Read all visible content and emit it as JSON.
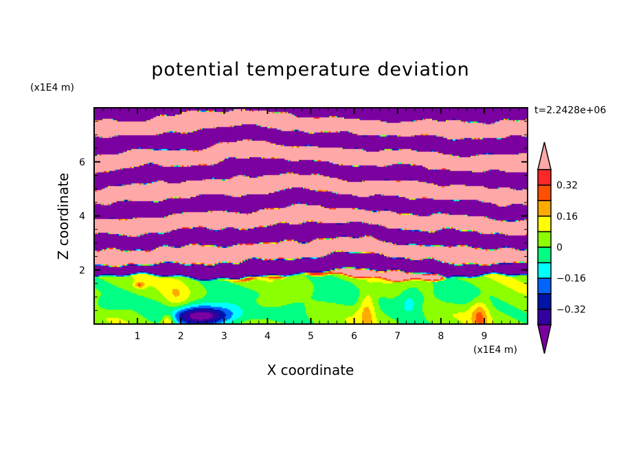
{
  "chart_data": {
    "type": "heatmap",
    "subtype": "filled-contour",
    "title": "potential temperature deviation",
    "xlabel": "X coordinate",
    "ylabel": "Z coordinate",
    "x_unit": "(x1E4 m)",
    "y_unit": "(x1E4 m)",
    "time_label": "t=2.2428e+06",
    "xlim": [
      0,
      10
    ],
    "ylim": [
      0,
      8
    ],
    "x_ticks": [
      1,
      2,
      3,
      4,
      5,
      6,
      7,
      8,
      9
    ],
    "x_tick_labels": [
      "1",
      "2",
      "3",
      "4",
      "5",
      "6",
      "7",
      "8",
      "9"
    ],
    "y_ticks": [
      2,
      4,
      6
    ],
    "y_tick_labels": [
      "2",
      "4",
      "6"
    ],
    "x_minor_step": 0.2,
    "y_minor_step": 0.5,
    "levels": [
      -0.4,
      -0.32,
      -0.24,
      -0.16,
      -0.08,
      0,
      0.08,
      0.16,
      0.24,
      0.32,
      0.4
    ],
    "colorbar_tick_values": [
      0.32,
      0.16,
      0,
      -0.16,
      -0.32
    ],
    "colorbar_tick_labels": [
      "0.32",
      "0.16",
      "0",
      "−0.16",
      "−0.32"
    ],
    "colors": [
      "#7b00a0",
      "#3200a0",
      "#0014a8",
      "#0064ff",
      "#00ffff",
      "#00ff82",
      "#8cff00",
      "#ffff00",
      "#ffaa00",
      "#ff5000",
      "#ff2828",
      "#ffa8a8"
    ],
    "colorbar_extend": "both",
    "legend_position": "right"
  }
}
